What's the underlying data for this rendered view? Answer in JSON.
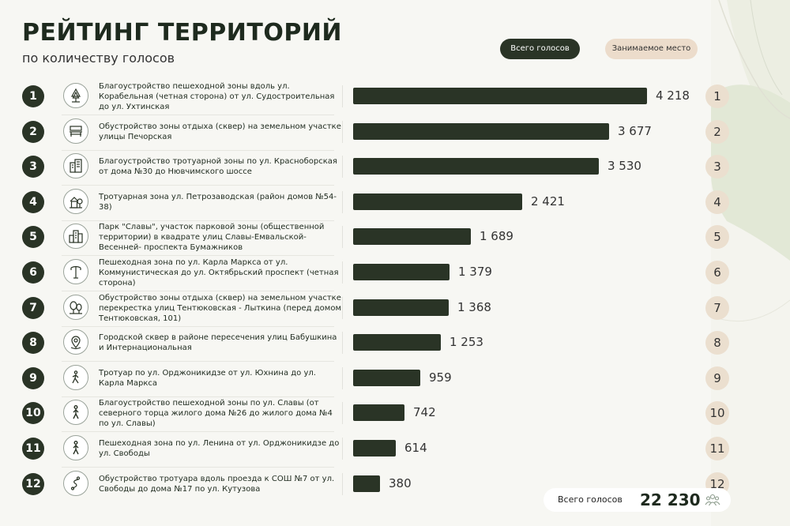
{
  "header": {
    "title": "РЕЙТИНГ ТЕРРИТОРИЙ",
    "subtitle": "по количеству голосов"
  },
  "legend": {
    "votes_label": "Всего голосов",
    "place_label": "Занимаемое место"
  },
  "chart_data": {
    "type": "bar",
    "orientation": "horizontal",
    "title": "РЕЙТИНГ ТЕРРИТОРИЙ",
    "subtitle": "по количеству голосов",
    "xlim": [
      0,
      4218
    ],
    "bar_color": "#2a3426",
    "categories": [
      "Благоустройство пешеходной зоны вдоль ул. Корабельная (четная сторона) от ул. Судостроительная до ул. Ухтинская",
      "Обустройство зоны отдыха (сквер) на земельном участке улицы Печорская",
      "Благоустройство тротуарной зоны по ул. Красноборская от дома №30 до Нювчимского шоссе",
      "Тротуарная зона ул. Петрозаводская (район домов №54-38)",
      "Парк \"Славы\", участок парковой зоны (общественной территории) в квадрате улиц Славы-Емвальской-Весенней- проспекта Бумажников",
      "Пешеходная зона по ул. Карла Маркса от ул. Коммунистическая до ул. Октябрьский проспект (четная сторона)",
      "Обустройство зоны отдыха (сквер) на земельном участке перекрестка улиц Тентюковская - Лыткина (перед домом Тентюковская, 101)",
      "Городской сквер в районе пересечения улиц Бабушкина и Интернациональная",
      "Тротуар по ул. Орджоникидзе от ул. Юхнина до ул. Карла Маркса",
      "Благоустройство пешеходной зоны по ул. Славы (от северного торца жилого дома №26 до жилого дома №4 по ул. Славы)",
      "Пешеходная зона по ул. Ленина от ул. Орджоникидзе до ул. Свободы",
      "Обустройство тротуара вдоль проезда к СОШ №7 от ул. Свободы до дома №17 по ул. Кутузова"
    ],
    "values": [
      4218,
      3677,
      3530,
      2421,
      1689,
      1379,
      1368,
      1253,
      959,
      742,
      614,
      380
    ],
    "value_labels": [
      "4 218",
      "3 677",
      "3 530",
      "2 421",
      "1 689",
      "1 379",
      "1 368",
      "1 253",
      "959",
      "742",
      "614",
      "380"
    ],
    "ranks": [
      "1",
      "2",
      "3",
      "4",
      "5",
      "6",
      "7",
      "8",
      "9",
      "10",
      "11",
      "12"
    ],
    "places": [
      "1",
      "2",
      "3",
      "4",
      "5",
      "6",
      "7",
      "8",
      "9",
      "10",
      "11",
      "12"
    ],
    "icons": [
      "tree-icon",
      "bench-icon",
      "buildings-icon",
      "house-tree-icon",
      "city-buildings-icon",
      "street-lamp-icon",
      "trees-icon",
      "location-pin-icon",
      "pedestrian-icon",
      "walking-person-icon",
      "walking-person-icon",
      "winding-path-icon"
    ]
  },
  "total": {
    "label": "Всего голосов",
    "value": "22 230",
    "icon": "people-group-icon"
  }
}
